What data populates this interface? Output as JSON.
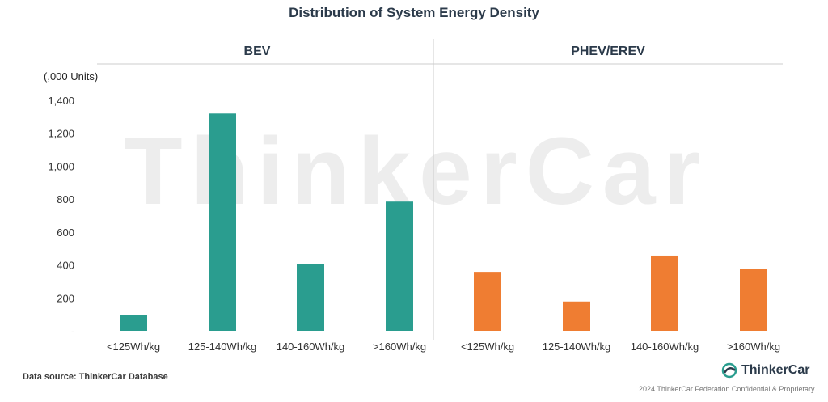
{
  "title": "Distribution of System Energy Density",
  "watermark": "ThinkerCar",
  "unit_label": "(,000 Units)",
  "source": "Data source: ThinkerCar Database",
  "logo_text": "ThinkerCar",
  "confidential": "2024 ThinkerCar Federation Confidential & Proprietary",
  "colors": {
    "bev": "#2a9d8f",
    "phev": "#ef7d32",
    "text": "#2b3a4a"
  },
  "chart_data": {
    "type": "bar",
    "title": "Distribution of System Energy Density",
    "ylabel": "(,000 Units)",
    "ylim": [
      0,
      1400
    ],
    "yticks": [
      "-",
      "200",
      "400",
      "600",
      "800",
      "1,000",
      "1,200",
      "1,400"
    ],
    "grid": false,
    "categories": [
      "<125Wh/kg",
      "125-140Wh/kg",
      "140-160Wh/kg",
      ">160Wh/kg"
    ],
    "series": [
      {
        "name": "BEV",
        "values": [
          95,
          1320,
          405,
          785
        ]
      },
      {
        "name": "PHEV/EREV",
        "values": [
          358,
          178,
          457,
          375
        ]
      }
    ]
  }
}
